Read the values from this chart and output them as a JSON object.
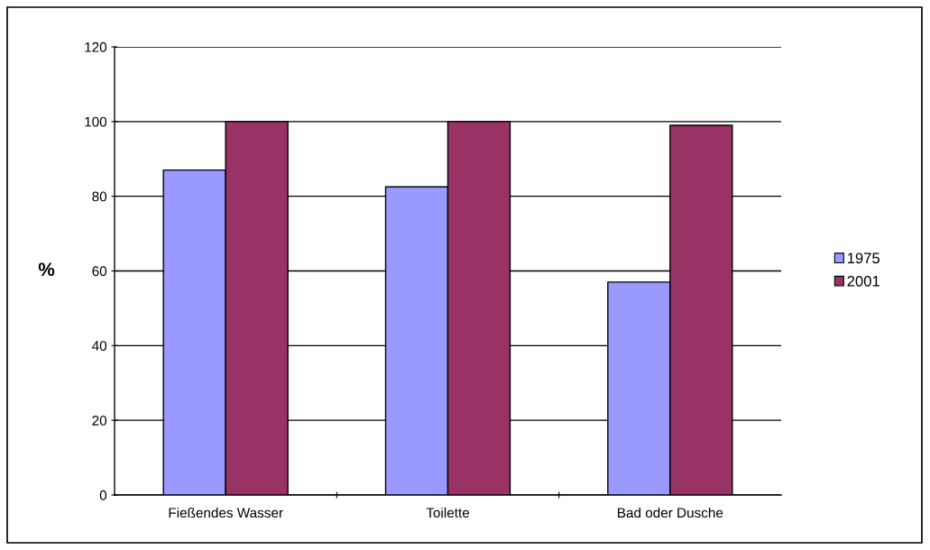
{
  "chart_data": {
    "type": "bar",
    "ylabel": "%",
    "categories": [
      "Fießendes Wasser",
      "Toilette",
      "Bad oder Dusche"
    ],
    "series": [
      {
        "name": "1975",
        "color": "#9999ff",
        "values": [
          87,
          82.5,
          57
        ]
      },
      {
        "name": "2001",
        "color": "#993366",
        "values": [
          100,
          100,
          99
        ]
      }
    ],
    "ylim": [
      0,
      120
    ],
    "yticks": [
      0,
      20,
      40,
      60,
      80,
      100,
      120
    ],
    "grid": "y",
    "legend": "right"
  }
}
